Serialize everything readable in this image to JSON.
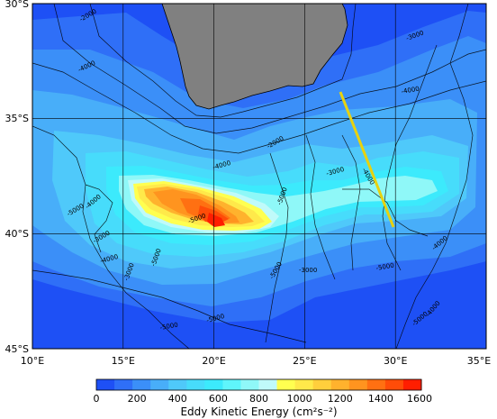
{
  "map": {
    "lat_range": [
      -45,
      -30
    ],
    "lon_range": [
      10,
      35
    ],
    "lat_ticks": [
      "30°S",
      "35°S",
      "40°S",
      "45°S"
    ],
    "lon_ticks": [
      "10°E",
      "15°E",
      "20°E",
      "25°E",
      "30°E",
      "35°E"
    ],
    "grid": true,
    "land_color": "#808080",
    "transect_color": "#e8d20f",
    "contour_labels": [
      "-2000",
      "-3000",
      "-4000",
      "-4000",
      "-2000",
      "-4000",
      "-5000",
      "-5000",
      "-3000",
      "-4000",
      "-3000",
      "-4000",
      "-5000",
      "-3000",
      "-4000",
      "-5000",
      "-5000",
      "-4000",
      "-3000",
      "-5000",
      "-5000",
      "-5000",
      "-4000",
      "-5000"
    ]
  },
  "colorbar": {
    "title": "Eddy Kinetic Energy (cm²s⁻²)",
    "ticks": [
      "0",
      "200",
      "400",
      "600",
      "800",
      "1000",
      "1200",
      "1400",
      "1600"
    ],
    "colors": [
      "#1e50f5",
      "#2f6ff7",
      "#3b8ff8",
      "#48aef9",
      "#4fc9fa",
      "#47dcfb",
      "#3ceafc",
      "#5ff5fb",
      "#8ff8f8",
      "#c0fafa",
      "#ffff50",
      "#ffe94a",
      "#ffcf3c",
      "#ffb22d",
      "#ff941f",
      "#ff7012",
      "#ff4c08",
      "#ff1e00"
    ]
  }
}
